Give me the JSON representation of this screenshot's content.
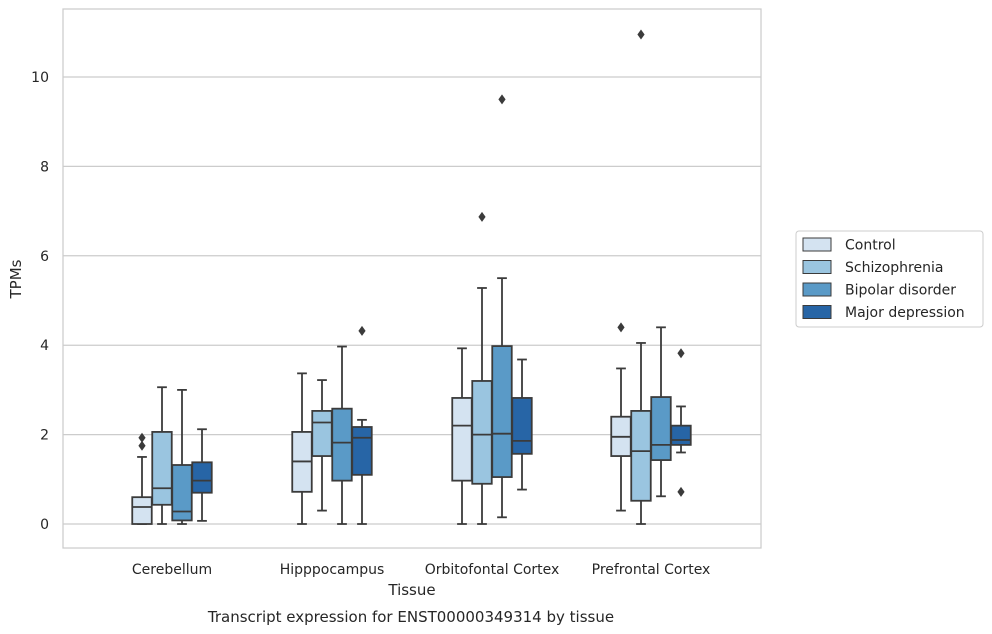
{
  "chart_data": {
    "type": "box",
    "title": "",
    "caption": "Transcript expression for ENST00000349314 by tissue",
    "xlabel": "Tissue",
    "ylabel": "TPMs",
    "ylim": [
      -0.5,
      11.5
    ],
    "yticks": [
      0,
      2,
      4,
      6,
      8,
      10
    ],
    "grid": "horizontal",
    "legend_position": "right",
    "categories": [
      "Cerebellum",
      "Hipppocampus",
      "Orbitofontal Cortex",
      "Prefrontal Cortex"
    ],
    "series": [
      {
        "name": "Control",
        "color": "#d4e3f1",
        "boxes": [
          {
            "whislo": 0.0,
            "q1": 0.0,
            "med": 0.38,
            "q3": 0.6,
            "whishi": 1.5,
            "fliers": [
              1.75,
              1.93
            ]
          },
          {
            "whislo": 0.0,
            "q1": 0.72,
            "med": 1.4,
            "q3": 2.06,
            "whishi": 3.37,
            "fliers": []
          },
          {
            "whislo": 0.0,
            "q1": 0.97,
            "med": 2.2,
            "q3": 2.82,
            "whishi": 3.93,
            "fliers": []
          },
          {
            "whislo": 0.3,
            "q1": 1.52,
            "med": 1.95,
            "q3": 2.4,
            "whishi": 3.48,
            "fliers": [
              4.4
            ]
          }
        ]
      },
      {
        "name": "Schizophrenia",
        "color": "#9ac5e0",
        "boxes": [
          {
            "whislo": 0.0,
            "q1": 0.43,
            "med": 0.8,
            "q3": 2.06,
            "whishi": 3.06,
            "fliers": []
          },
          {
            "whislo": 0.3,
            "q1": 1.52,
            "med": 2.27,
            "q3": 2.53,
            "whishi": 3.22,
            "fliers": []
          },
          {
            "whislo": 0.0,
            "q1": 0.9,
            "med": 2.0,
            "q3": 3.2,
            "whishi": 5.28,
            "fliers": [
              6.87
            ]
          },
          {
            "whislo": 0.0,
            "q1": 0.52,
            "med": 1.63,
            "q3": 2.53,
            "whishi": 4.05,
            "fliers": [
              10.95
            ]
          }
        ]
      },
      {
        "name": "Bipolar disorder",
        "color": "#5a9ac7",
        "boxes": [
          {
            "whislo": 0.0,
            "q1": 0.08,
            "med": 0.28,
            "q3": 1.32,
            "whishi": 3.0,
            "fliers": []
          },
          {
            "whislo": 0.0,
            "q1": 0.97,
            "med": 1.82,
            "q3": 2.58,
            "whishi": 3.97,
            "fliers": []
          },
          {
            "whislo": 0.15,
            "q1": 1.05,
            "med": 2.02,
            "q3": 3.98,
            "whishi": 5.5,
            "fliers": [
              9.5
            ]
          },
          {
            "whislo": 0.62,
            "q1": 1.43,
            "med": 1.77,
            "q3": 2.84,
            "whishi": 4.4,
            "fliers": []
          }
        ]
      },
      {
        "name": "Major depression",
        "color": "#2765a6",
        "boxes": [
          {
            "whislo": 0.07,
            "q1": 0.7,
            "med": 0.97,
            "q3": 1.38,
            "whishi": 2.12,
            "fliers": []
          },
          {
            "whislo": 0.0,
            "q1": 1.1,
            "med": 1.93,
            "q3": 2.17,
            "whishi": 2.33,
            "fliers": [
              4.32
            ]
          },
          {
            "whislo": 0.77,
            "q1": 1.57,
            "med": 1.86,
            "q3": 2.82,
            "whishi": 3.68,
            "fliers": []
          },
          {
            "whislo": 1.6,
            "q1": 1.77,
            "med": 1.88,
            "q3": 2.2,
            "whishi": 2.63,
            "fliers": [
              3.82,
              0.72
            ]
          }
        ]
      }
    ]
  }
}
